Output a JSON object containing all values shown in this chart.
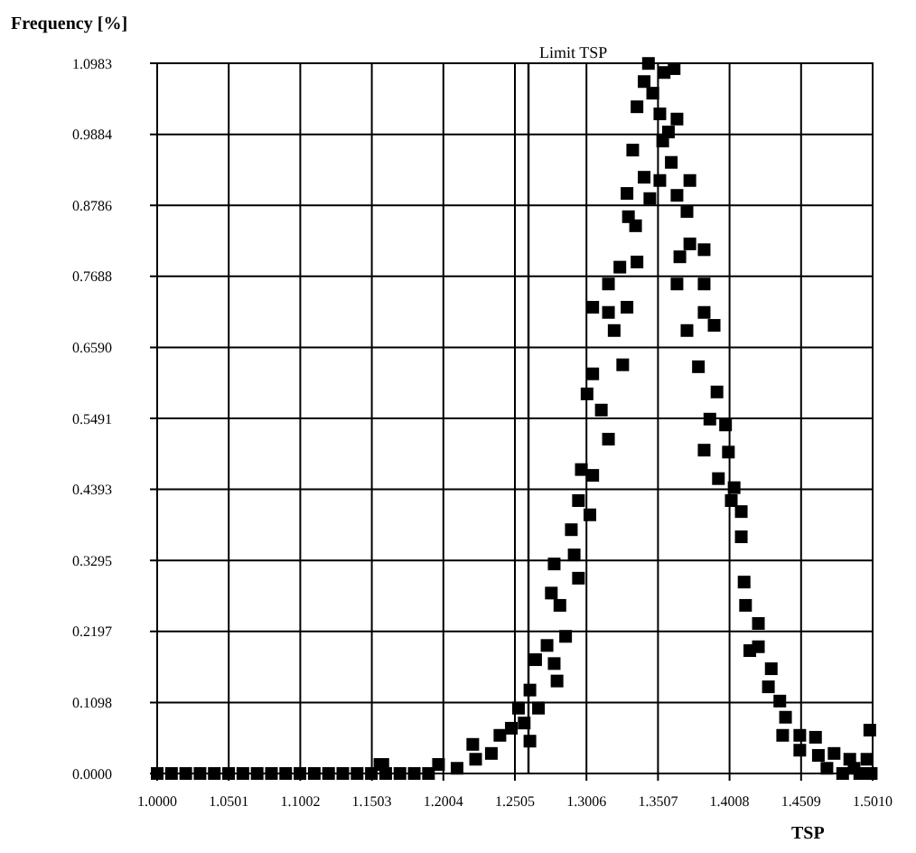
{
  "chart_data": {
    "type": "scatter",
    "xlabel": "TSP",
    "ylabel": "Frequency [%]",
    "marker": "square",
    "grid": true,
    "xlim": [
      1.0,
      1.501
    ],
    "ylim": [
      0,
      1.0983
    ],
    "xticks": [
      {
        "value": 1.0,
        "label": "1.0000"
      },
      1.0501,
      1.1002,
      1.1503,
      1.2004,
      1.2505,
      1.3006,
      1.3507,
      1.4008,
      1.4509,
      {
        "value": 1.501,
        "label": "1.5010"
      }
    ],
    "yticks": [
      {
        "value": 0,
        "label": "0.0000"
      },
      0.1098,
      0.2197,
      0.3295,
      0.4393,
      0.5491,
      {
        "value": 0.659,
        "label": "0.6590"
      },
      0.7688,
      0.8786,
      0.9884,
      1.0983
    ],
    "ref_lines": [
      {
        "axis": "x",
        "value": 1.26,
        "label": "Limit TSP",
        "color": "#000000"
      }
    ],
    "series": [
      {
        "color": "#000000",
        "x": [
          1.0,
          1.01,
          1.02,
          1.03,
          1.04,
          1.05,
          1.06,
          1.07,
          1.08,
          1.09,
          1.1,
          1.11,
          1.12,
          1.13,
          1.14,
          1.15,
          1.16,
          1.17,
          1.18,
          1.19,
          1.158,
          1.156,
          1.197,
          1.21,
          1.223,
          1.221,
          1.234,
          1.24,
          1.248,
          1.261,
          1.257,
          1.253,
          1.267,
          1.261,
          1.28,
          1.278,
          1.265,
          1.273,
          1.286,
          1.276,
          1.282,
          1.295,
          1.278,
          1.292,
          1.29,
          1.303,
          1.295,
          1.297,
          1.305,
          1.316,
          1.311,
          1.301,
          1.305,
          1.326,
          1.316,
          1.305,
          1.329,
          1.32,
          1.316,
          1.324,
          1.336,
          1.33,
          1.335,
          1.329,
          1.345,
          1.341,
          1.352,
          1.364,
          1.371,
          1.373,
          1.333,
          1.354,
          1.36,
          1.358,
          1.336,
          1.352,
          1.364,
          1.347,
          1.341,
          1.355,
          1.362,
          1.344,
          1.373,
          1.383,
          1.366,
          1.364,
          1.383,
          1.383,
          1.371,
          1.39,
          1.379,
          1.392,
          1.387,
          1.398,
          1.383,
          1.4,
          1.393,
          1.404,
          1.402,
          1.409,
          1.409,
          1.411,
          1.412,
          1.421,
          1.415,
          1.421,
          1.43,
          1.428,
          1.436,
          1.44,
          1.438,
          1.45,
          1.461,
          1.45,
          1.463,
          1.474,
          1.485,
          1.497,
          1.499,
          1.469,
          1.488,
          1.48,
          1.492,
          1.5
        ],
        "values": [
          0,
          0,
          0,
          0,
          0,
          0,
          0,
          0,
          0,
          0,
          0,
          0,
          0,
          0,
          0,
          0,
          0,
          0,
          0,
          0,
          0.014,
          0.014,
          0.014,
          0.008,
          0.022,
          0.045,
          0.031,
          0.059,
          0.07,
          0.05,
          0.078,
          0.101,
          0.101,
          0.129,
          0.143,
          0.17,
          0.176,
          0.198,
          0.212,
          0.279,
          0.26,
          0.302,
          0.324,
          0.338,
          0.377,
          0.4,
          0.422,
          0.47,
          0.461,
          0.517,
          0.562,
          0.587,
          0.618,
          0.632,
          0.713,
          0.721,
          0.721,
          0.685,
          0.757,
          0.783,
          0.791,
          0.861,
          0.847,
          0.897,
          0.889,
          0.922,
          0.917,
          0.894,
          0.869,
          0.917,
          0.964,
          0.978,
          0.945,
          0.992,
          1.031,
          1.02,
          1.012,
          1.052,
          1.07,
          1.084,
          1.09,
          1.098,
          0.819,
          0.81,
          0.799,
          0.757,
          0.757,
          0.713,
          0.685,
          0.693,
          0.629,
          0.59,
          0.548,
          0.539,
          0.5,
          0.497,
          0.456,
          0.442,
          0.422,
          0.405,
          0.366,
          0.296,
          0.26,
          0.232,
          0.19,
          0.196,
          0.162,
          0.134,
          0.112,
          0.087,
          0.059,
          0.059,
          0.056,
          0.036,
          0.028,
          0.031,
          0.022,
          0.022,
          0.067,
          0.008,
          0.008,
          0,
          0,
          0
        ]
      }
    ]
  }
}
